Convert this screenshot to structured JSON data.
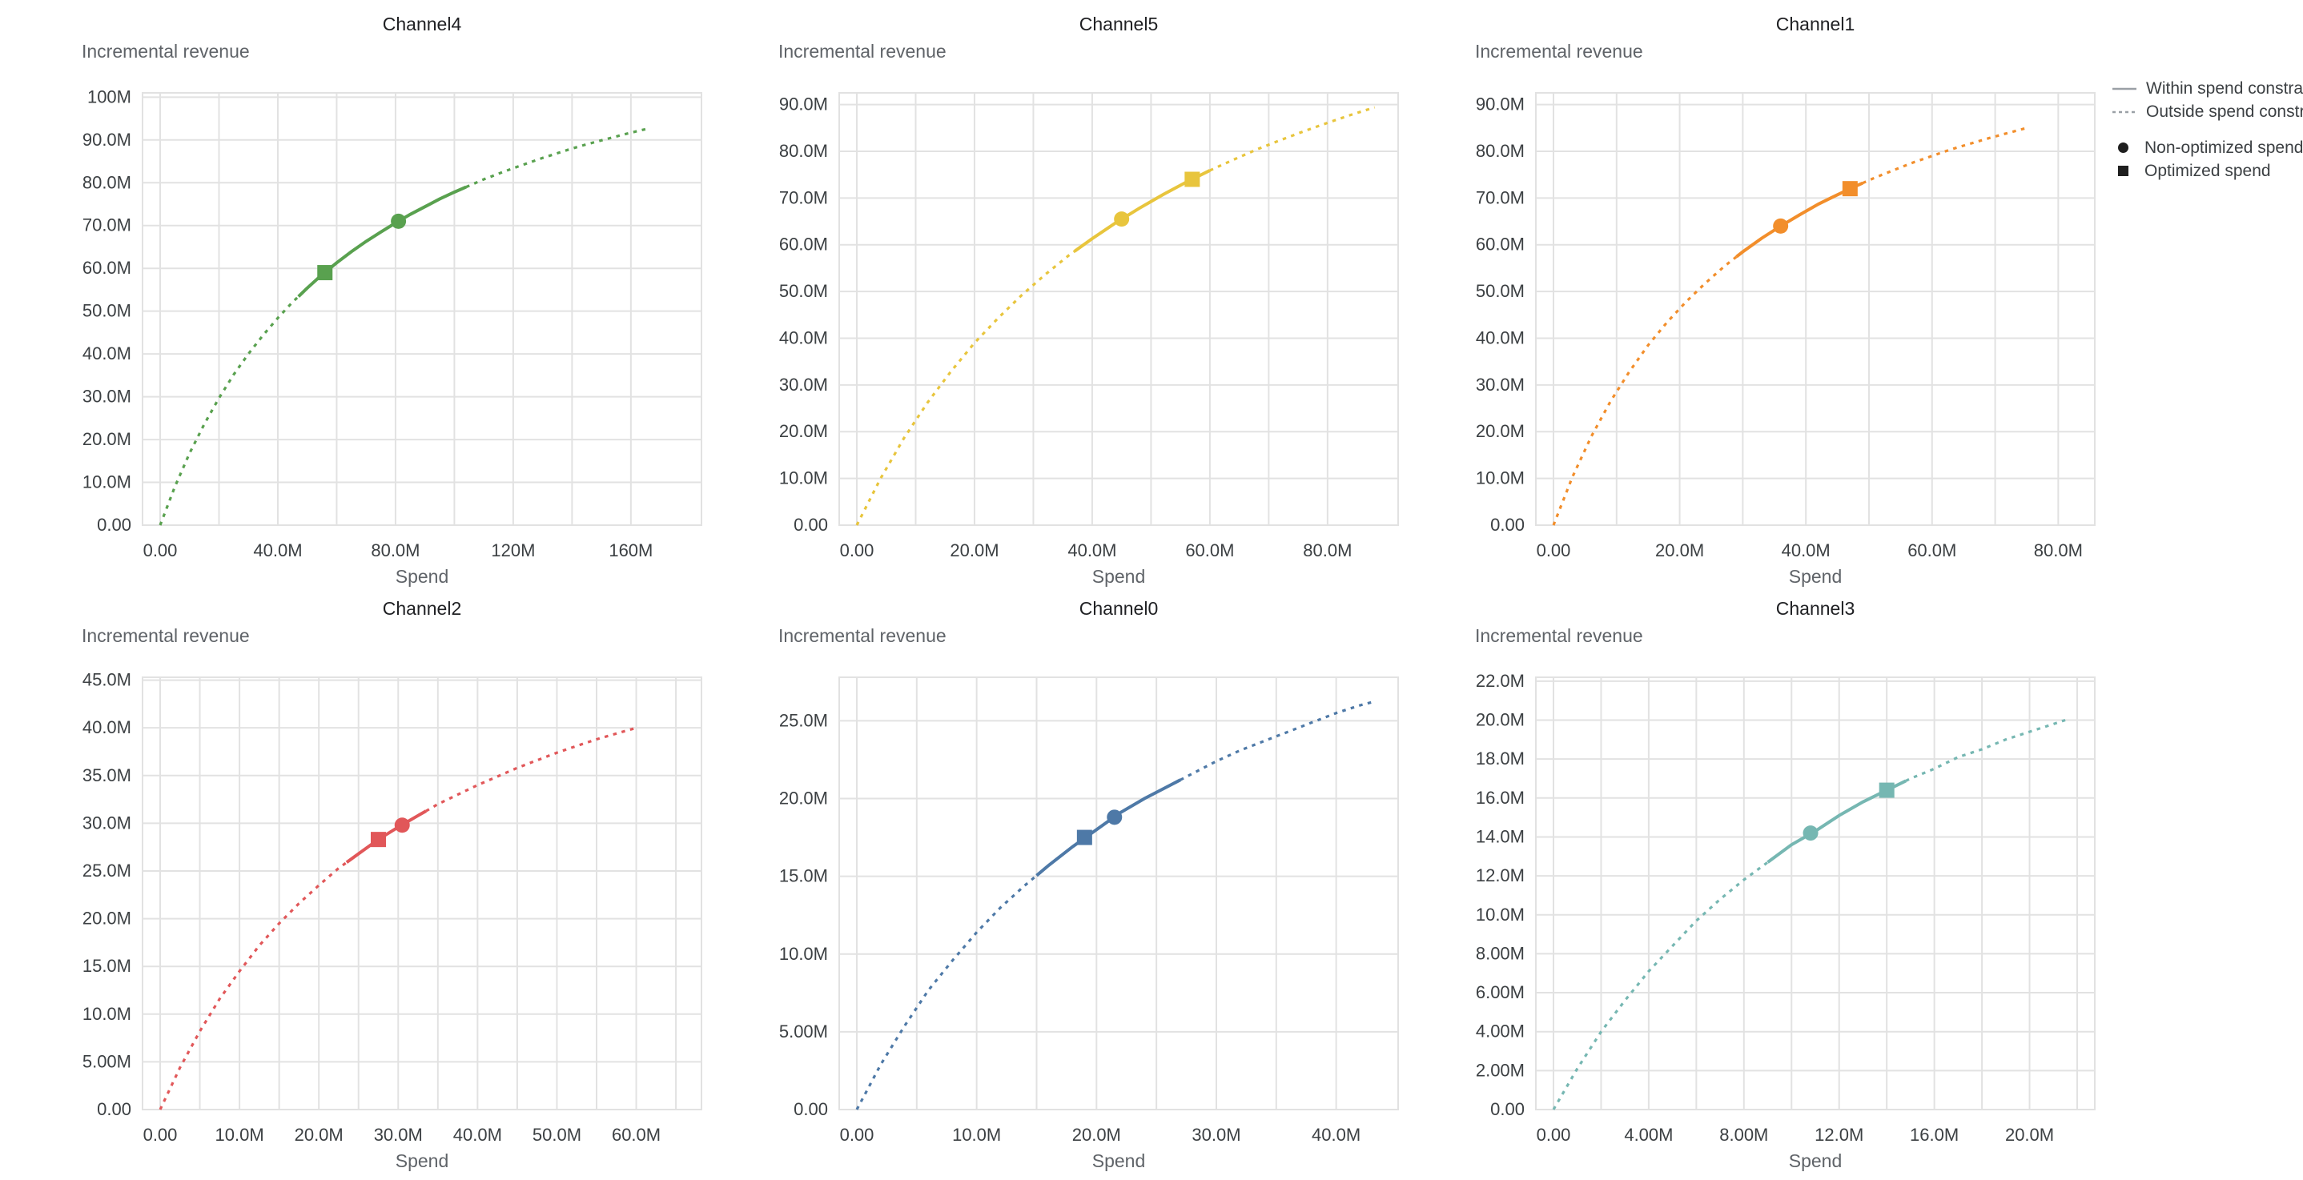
{
  "legend": {
    "swatch_color": "#9aa0a6",
    "marker_color": "#1f1f1f",
    "items": [
      {
        "name": "within",
        "swatch": "solid-line",
        "label": "Within spend constraint"
      },
      {
        "name": "outside",
        "swatch": "dashed-line",
        "label": "Outside spend constraint"
      },
      {
        "name": "non-optimized",
        "swatch": "circle",
        "label": "Non-optimized spend"
      },
      {
        "name": "optimized",
        "swatch": "square",
        "label": "Optimized spend"
      }
    ]
  },
  "chart_data": [
    {
      "type": "line",
      "title": "Channel4",
      "y_title": "Incremental revenue",
      "x_title": "Spend",
      "color": "#59a14f",
      "xlim": [
        0,
        178
      ],
      "ylim": [
        0,
        101
      ],
      "x_grid_step": 20,
      "x_ticks": [
        {
          "v": 0,
          "label": "0.00"
        },
        {
          "v": 40,
          "label": "40.0M"
        },
        {
          "v": 80,
          "label": "80.0M"
        },
        {
          "v": 120,
          "label": "120M"
        },
        {
          "v": 160,
          "label": "160M"
        }
      ],
      "y_ticks": [
        {
          "v": 0,
          "label": "0.00"
        },
        {
          "v": 10,
          "label": "10.0M"
        },
        {
          "v": 20,
          "label": "20.0M"
        },
        {
          "v": 30,
          "label": "30.0M"
        },
        {
          "v": 40,
          "label": "40.0M"
        },
        {
          "v": 50,
          "label": "50.0M"
        },
        {
          "v": 60,
          "label": "60.0M"
        },
        {
          "v": 70,
          "label": "70.0M"
        },
        {
          "v": 80,
          "label": "80.0M"
        },
        {
          "v": 90,
          "label": "90.0M"
        },
        {
          "v": 100,
          "label": "100M"
        }
      ],
      "solid_range": [
        47,
        104
      ],
      "markers": {
        "non_optimized": {
          "x": 81,
          "y": 71.0
        },
        "optimized": {
          "x": 56,
          "y": 59.0
        }
      },
      "curve": [
        [
          0,
          0
        ],
        [
          5,
          9.0
        ],
        [
          10,
          16.8
        ],
        [
          15,
          23.6
        ],
        [
          20,
          29.7
        ],
        [
          25,
          35.2
        ],
        [
          30,
          40.0
        ],
        [
          35,
          44.4
        ],
        [
          40,
          48.4
        ],
        [
          45,
          52.1
        ],
        [
          50,
          55.4
        ],
        [
          55,
          58.5
        ],
        [
          60,
          61.3
        ],
        [
          65,
          63.9
        ],
        [
          70,
          66.3
        ],
        [
          75,
          68.5
        ],
        [
          80,
          70.6
        ],
        [
          85,
          72.6
        ],
        [
          90,
          74.4
        ],
        [
          95,
          76.2
        ],
        [
          100,
          77.8
        ],
        [
          105,
          79.3
        ],
        [
          110,
          80.8
        ],
        [
          115,
          82.1
        ],
        [
          120,
          83.4
        ],
        [
          125,
          84.6
        ],
        [
          130,
          85.8
        ],
        [
          135,
          86.9
        ],
        [
          140,
          88.0
        ],
        [
          145,
          89.0
        ],
        [
          150,
          89.9
        ],
        [
          155,
          90.8
        ],
        [
          160,
          91.7
        ],
        [
          165,
          92.5
        ]
      ]
    },
    {
      "type": "line",
      "title": "Channel5",
      "y_title": "Incremental revenue",
      "x_title": "Spend",
      "color": "#e8c53d",
      "xlim": [
        0,
        89
      ],
      "ylim": [
        0,
        92.5
      ],
      "x_grid_step": 10,
      "x_ticks": [
        {
          "v": 0,
          "label": "0.00"
        },
        {
          "v": 20,
          "label": "20.0M"
        },
        {
          "v": 40,
          "label": "40.0M"
        },
        {
          "v": 60,
          "label": "60.0M"
        },
        {
          "v": 80,
          "label": "80.0M"
        }
      ],
      "y_ticks": [
        {
          "v": 0,
          "label": "0.00"
        },
        {
          "v": 10,
          "label": "10.0M"
        },
        {
          "v": 20,
          "label": "20.0M"
        },
        {
          "v": 30,
          "label": "30.0M"
        },
        {
          "v": 40,
          "label": "40.0M"
        },
        {
          "v": 50,
          "label": "50.0M"
        },
        {
          "v": 60,
          "label": "60.0M"
        },
        {
          "v": 70,
          "label": "70.0M"
        },
        {
          "v": 80,
          "label": "80.0M"
        },
        {
          "v": 90,
          "label": "90.0M"
        }
      ],
      "solid_range": [
        37,
        60
      ],
      "markers": {
        "non_optimized": {
          "x": 45,
          "y": 65.5
        },
        "optimized": {
          "x": 57,
          "y": 74.0
        }
      },
      "curve": [
        [
          0,
          0
        ],
        [
          4,
          9.9
        ],
        [
          8,
          18.6
        ],
        [
          12,
          26.2
        ],
        [
          16,
          32.9
        ],
        [
          20,
          39.0
        ],
        [
          24,
          44.3
        ],
        [
          28,
          49.2
        ],
        [
          32,
          53.6
        ],
        [
          36,
          57.7
        ],
        [
          40,
          61.3
        ],
        [
          44,
          64.7
        ],
        [
          48,
          67.8
        ],
        [
          52,
          70.7
        ],
        [
          56,
          73.4
        ],
        [
          60,
          75.9
        ],
        [
          64,
          78.2
        ],
        [
          68,
          80.4
        ],
        [
          72,
          82.4
        ],
        [
          76,
          84.3
        ],
        [
          80,
          86.1
        ],
        [
          84,
          87.8
        ],
        [
          88,
          89.4
        ]
      ]
    },
    {
      "type": "line",
      "title": "Channel1",
      "y_title": "Incremental revenue",
      "x_title": "Spend",
      "color": "#f28e2b",
      "xlim": [
        0,
        83
      ],
      "ylim": [
        0,
        92.5
      ],
      "x_grid_step": 10,
      "x_ticks": [
        {
          "v": 0,
          "label": "0.00"
        },
        {
          "v": 20,
          "label": "20.0M"
        },
        {
          "v": 40,
          "label": "40.0M"
        },
        {
          "v": 60,
          "label": "60.0M"
        },
        {
          "v": 80,
          "label": "80.0M"
        }
      ],
      "y_ticks": [
        {
          "v": 0,
          "label": "0.00"
        },
        {
          "v": 10,
          "label": "10.0M"
        },
        {
          "v": 20,
          "label": "20.0M"
        },
        {
          "v": 30,
          "label": "30.0M"
        },
        {
          "v": 40,
          "label": "40.0M"
        },
        {
          "v": 50,
          "label": "50.0M"
        },
        {
          "v": 60,
          "label": "60.0M"
        },
        {
          "v": 70,
          "label": "70.0M"
        },
        {
          "v": 80,
          "label": "80.0M"
        },
        {
          "v": 90,
          "label": "90.0M"
        }
      ],
      "solid_range": [
        29,
        49
      ],
      "markers": {
        "non_optimized": {
          "x": 36,
          "y": 64.0
        },
        "optimized": {
          "x": 47,
          "y": 72.0
        }
      },
      "curve": [
        [
          0,
          0
        ],
        [
          3,
          10.3
        ],
        [
          6,
          19.0
        ],
        [
          9,
          26.4
        ],
        [
          12,
          32.8
        ],
        [
          15,
          38.5
        ],
        [
          18,
          43.4
        ],
        [
          21,
          47.8
        ],
        [
          24,
          51.7
        ],
        [
          27,
          55.3
        ],
        [
          30,
          58.5
        ],
        [
          33,
          61.4
        ],
        [
          36,
          64.0
        ],
        [
          39,
          66.4
        ],
        [
          42,
          68.7
        ],
        [
          45,
          70.7
        ],
        [
          48,
          72.6
        ],
        [
          51,
          74.4
        ],
        [
          54,
          76.0
        ],
        [
          57,
          77.6
        ],
        [
          60,
          79.0
        ],
        [
          63,
          80.4
        ],
        [
          66,
          81.6
        ],
        [
          69,
          82.8
        ],
        [
          72,
          83.9
        ],
        [
          75,
          85.0
        ]
      ]
    },
    {
      "type": "line",
      "title": "Channel2",
      "y_title": "Incremental revenue",
      "x_title": "Spend",
      "color": "#e15759",
      "xlim": [
        0,
        66
      ],
      "ylim": [
        0,
        45.3
      ],
      "x_grid_step": 5,
      "x_ticks": [
        {
          "v": 0,
          "label": "0.00"
        },
        {
          "v": 10,
          "label": "10.0M"
        },
        {
          "v": 20,
          "label": "20.0M"
        },
        {
          "v": 30,
          "label": "30.0M"
        },
        {
          "v": 40,
          "label": "40.0M"
        },
        {
          "v": 50,
          "label": "50.0M"
        },
        {
          "v": 60,
          "label": "60.0M"
        }
      ],
      "y_ticks": [
        {
          "v": 0,
          "label": "0.00"
        },
        {
          "v": 5,
          "label": "5.00M"
        },
        {
          "v": 10,
          "label": "10.0M"
        },
        {
          "v": 15,
          "label": "15.0M"
        },
        {
          "v": 20,
          "label": "20.0M"
        },
        {
          "v": 25,
          "label": "25.0M"
        },
        {
          "v": 30,
          "label": "30.0M"
        },
        {
          "v": 35,
          "label": "35.0M"
        },
        {
          "v": 40,
          "label": "40.0M"
        },
        {
          "v": 45,
          "label": "45.0M"
        }
      ],
      "solid_range": [
        23.5,
        33.5
      ],
      "markers": {
        "non_optimized": {
          "x": 30.5,
          "y": 29.8
        },
        "optimized": {
          "x": 27.5,
          "y": 28.3
        }
      },
      "curve": [
        [
          0,
          0
        ],
        [
          2.5,
          4.4
        ],
        [
          5,
          8.2
        ],
        [
          7.5,
          11.6
        ],
        [
          10,
          14.5
        ],
        [
          12.5,
          17.2
        ],
        [
          15,
          19.5
        ],
        [
          17.5,
          21.6
        ],
        [
          20,
          23.5
        ],
        [
          22.5,
          25.3
        ],
        [
          25,
          26.8
        ],
        [
          27.5,
          28.3
        ],
        [
          30,
          29.6
        ],
        [
          32.5,
          30.8
        ],
        [
          35,
          32.0
        ],
        [
          37.5,
          33.0
        ],
        [
          40,
          34.0
        ],
        [
          42.5,
          34.9
        ],
        [
          45,
          35.8
        ],
        [
          47.5,
          36.6
        ],
        [
          50,
          37.4
        ],
        [
          52.5,
          38.1
        ],
        [
          55,
          38.8
        ],
        [
          57.5,
          39.4
        ],
        [
          60,
          40.0
        ]
      ]
    },
    {
      "type": "line",
      "title": "Channel0",
      "y_title": "Incremental revenue",
      "x_title": "Spend",
      "color": "#4e79a7",
      "xlim": [
        0,
        43.7
      ],
      "ylim": [
        0,
        27.8
      ],
      "x_grid_step": 5,
      "x_ticks": [
        {
          "v": 0,
          "label": "0.00"
        },
        {
          "v": 10,
          "label": "10.0M"
        },
        {
          "v": 20,
          "label": "20.0M"
        },
        {
          "v": 30,
          "label": "30.0M"
        },
        {
          "v": 40,
          "label": "40.0M"
        }
      ],
      "y_ticks": [
        {
          "v": 0,
          "label": "0.00"
        },
        {
          "v": 5,
          "label": "5.00M"
        },
        {
          "v": 10,
          "label": "10.0M"
        },
        {
          "v": 15,
          "label": "15.0M"
        },
        {
          "v": 20,
          "label": "20.0M"
        },
        {
          "v": 25,
          "label": "25.0M"
        }
      ],
      "solid_range": [
        15,
        27
      ],
      "markers": {
        "non_optimized": {
          "x": 21.5,
          "y": 18.8
        },
        "optimized": {
          "x": 19,
          "y": 17.5
        }
      },
      "curve": [
        [
          0,
          0
        ],
        [
          2,
          2.9
        ],
        [
          4,
          5.4
        ],
        [
          6,
          7.7
        ],
        [
          8,
          9.6
        ],
        [
          10,
          11.4
        ],
        [
          12,
          13.0
        ],
        [
          14,
          14.4
        ],
        [
          16,
          15.7
        ],
        [
          18,
          16.9
        ],
        [
          20,
          18.0
        ],
        [
          22,
          19.1
        ],
        [
          24,
          20.0
        ],
        [
          26,
          20.8
        ],
        [
          28,
          21.6
        ],
        [
          30,
          22.4
        ],
        [
          32,
          23.1
        ],
        [
          34,
          23.7
        ],
        [
          36,
          24.3
        ],
        [
          38,
          24.9
        ],
        [
          40,
          25.5
        ],
        [
          42,
          26.0
        ],
        [
          43,
          26.2
        ]
      ]
    },
    {
      "type": "line",
      "title": "Channel3",
      "y_title": "Incremental revenue",
      "x_title": "Spend",
      "color": "#76b7b2",
      "xlim": [
        0,
        22
      ],
      "ylim": [
        0,
        22.2
      ],
      "x_grid_step": 2,
      "x_ticks": [
        {
          "v": 0,
          "label": "0.00"
        },
        {
          "v": 4,
          "label": "4.00M"
        },
        {
          "v": 8,
          "label": "8.00M"
        },
        {
          "v": 12,
          "label": "12.0M"
        },
        {
          "v": 16,
          "label": "16.0M"
        },
        {
          "v": 20,
          "label": "20.0M"
        }
      ],
      "y_ticks": [
        {
          "v": 0,
          "label": "0.00"
        },
        {
          "v": 2,
          "label": "2.00M"
        },
        {
          "v": 4,
          "label": "4.00M"
        },
        {
          "v": 6,
          "label": "6.00M"
        },
        {
          "v": 8,
          "label": "8.00M"
        },
        {
          "v": 10,
          "label": "10.0M"
        },
        {
          "v": 12,
          "label": "12.0M"
        },
        {
          "v": 14,
          "label": "14.0M"
        },
        {
          "v": 16,
          "label": "16.0M"
        },
        {
          "v": 18,
          "label": "18.0M"
        },
        {
          "v": 20,
          "label": "20.0M"
        },
        {
          "v": 22,
          "label": "22.0M"
        }
      ],
      "solid_range": [
        9,
        14.8
      ],
      "markers": {
        "non_optimized": {
          "x": 10.8,
          "y": 14.2
        },
        "optimized": {
          "x": 14,
          "y": 16.4
        }
      },
      "curve": [
        [
          0,
          0
        ],
        [
          1,
          2.1
        ],
        [
          2,
          4.0
        ],
        [
          3,
          5.6
        ],
        [
          4,
          7.1
        ],
        [
          5,
          8.4
        ],
        [
          6,
          9.7
        ],
        [
          7,
          10.8
        ],
        [
          8,
          11.8
        ],
        [
          9,
          12.7
        ],
        [
          10,
          13.6
        ],
        [
          11,
          14.3
        ],
        [
          12,
          15.1
        ],
        [
          13,
          15.8
        ],
        [
          14,
          16.4
        ],
        [
          15,
          17.0
        ],
        [
          16,
          17.5
        ],
        [
          17,
          18.1
        ],
        [
          18,
          18.5
        ],
        [
          19,
          19.0
        ],
        [
          20,
          19.4
        ],
        [
          21,
          19.8
        ],
        [
          21.5,
          20.0
        ]
      ]
    }
  ]
}
